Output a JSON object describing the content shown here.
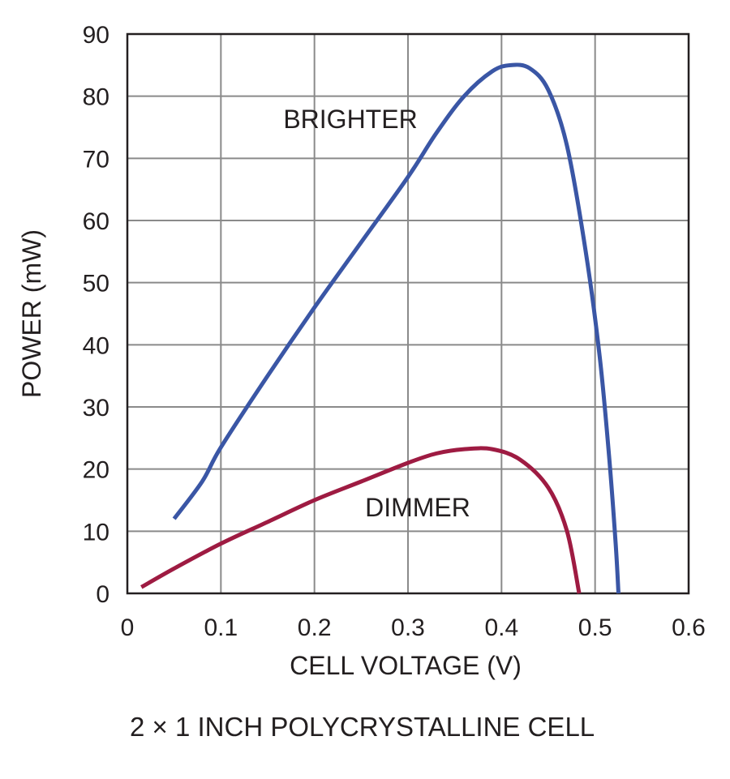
{
  "chart_data": {
    "type": "line",
    "xlabel": "CELL VOLTAGE (V)",
    "ylabel": "POWER (mW)",
    "xlim": [
      0,
      0.6
    ],
    "ylim": [
      0,
      90
    ],
    "x_ticks": [
      "0",
      "0.1",
      "0.2",
      "0.3",
      "0.4",
      "0.5",
      "0.6"
    ],
    "y_ticks": [
      "0",
      "10",
      "20",
      "30",
      "40",
      "50",
      "60",
      "70",
      "80",
      "90"
    ],
    "grid": true,
    "caption": "2 × 1 INCH POLYCRYSTALLINE CELL",
    "series": [
      {
        "name": "BRIGHTER",
        "color": "#3a56a5",
        "points": [
          [
            0.05,
            12
          ],
          [
            0.08,
            18
          ],
          [
            0.1,
            23.5
          ],
          [
            0.15,
            35
          ],
          [
            0.2,
            46
          ],
          [
            0.25,
            56.5
          ],
          [
            0.3,
            67
          ],
          [
            0.33,
            74
          ],
          [
            0.36,
            80
          ],
          [
            0.39,
            84
          ],
          [
            0.41,
            85
          ],
          [
            0.43,
            84.5
          ],
          [
            0.45,
            81
          ],
          [
            0.47,
            72
          ],
          [
            0.49,
            55
          ],
          [
            0.505,
            38
          ],
          [
            0.515,
            22
          ],
          [
            0.522,
            8
          ],
          [
            0.525,
            0
          ]
        ]
      },
      {
        "name": "DIMMER",
        "color": "#9e1b42",
        "points": [
          [
            0.015,
            1
          ],
          [
            0.05,
            4
          ],
          [
            0.1,
            8
          ],
          [
            0.15,
            11.5
          ],
          [
            0.2,
            15
          ],
          [
            0.25,
            18
          ],
          [
            0.3,
            21
          ],
          [
            0.33,
            22.5
          ],
          [
            0.36,
            23.2
          ],
          [
            0.39,
            23.2
          ],
          [
            0.42,
            21.5
          ],
          [
            0.45,
            17
          ],
          [
            0.47,
            10
          ],
          [
            0.483,
            0
          ]
        ]
      }
    ]
  }
}
